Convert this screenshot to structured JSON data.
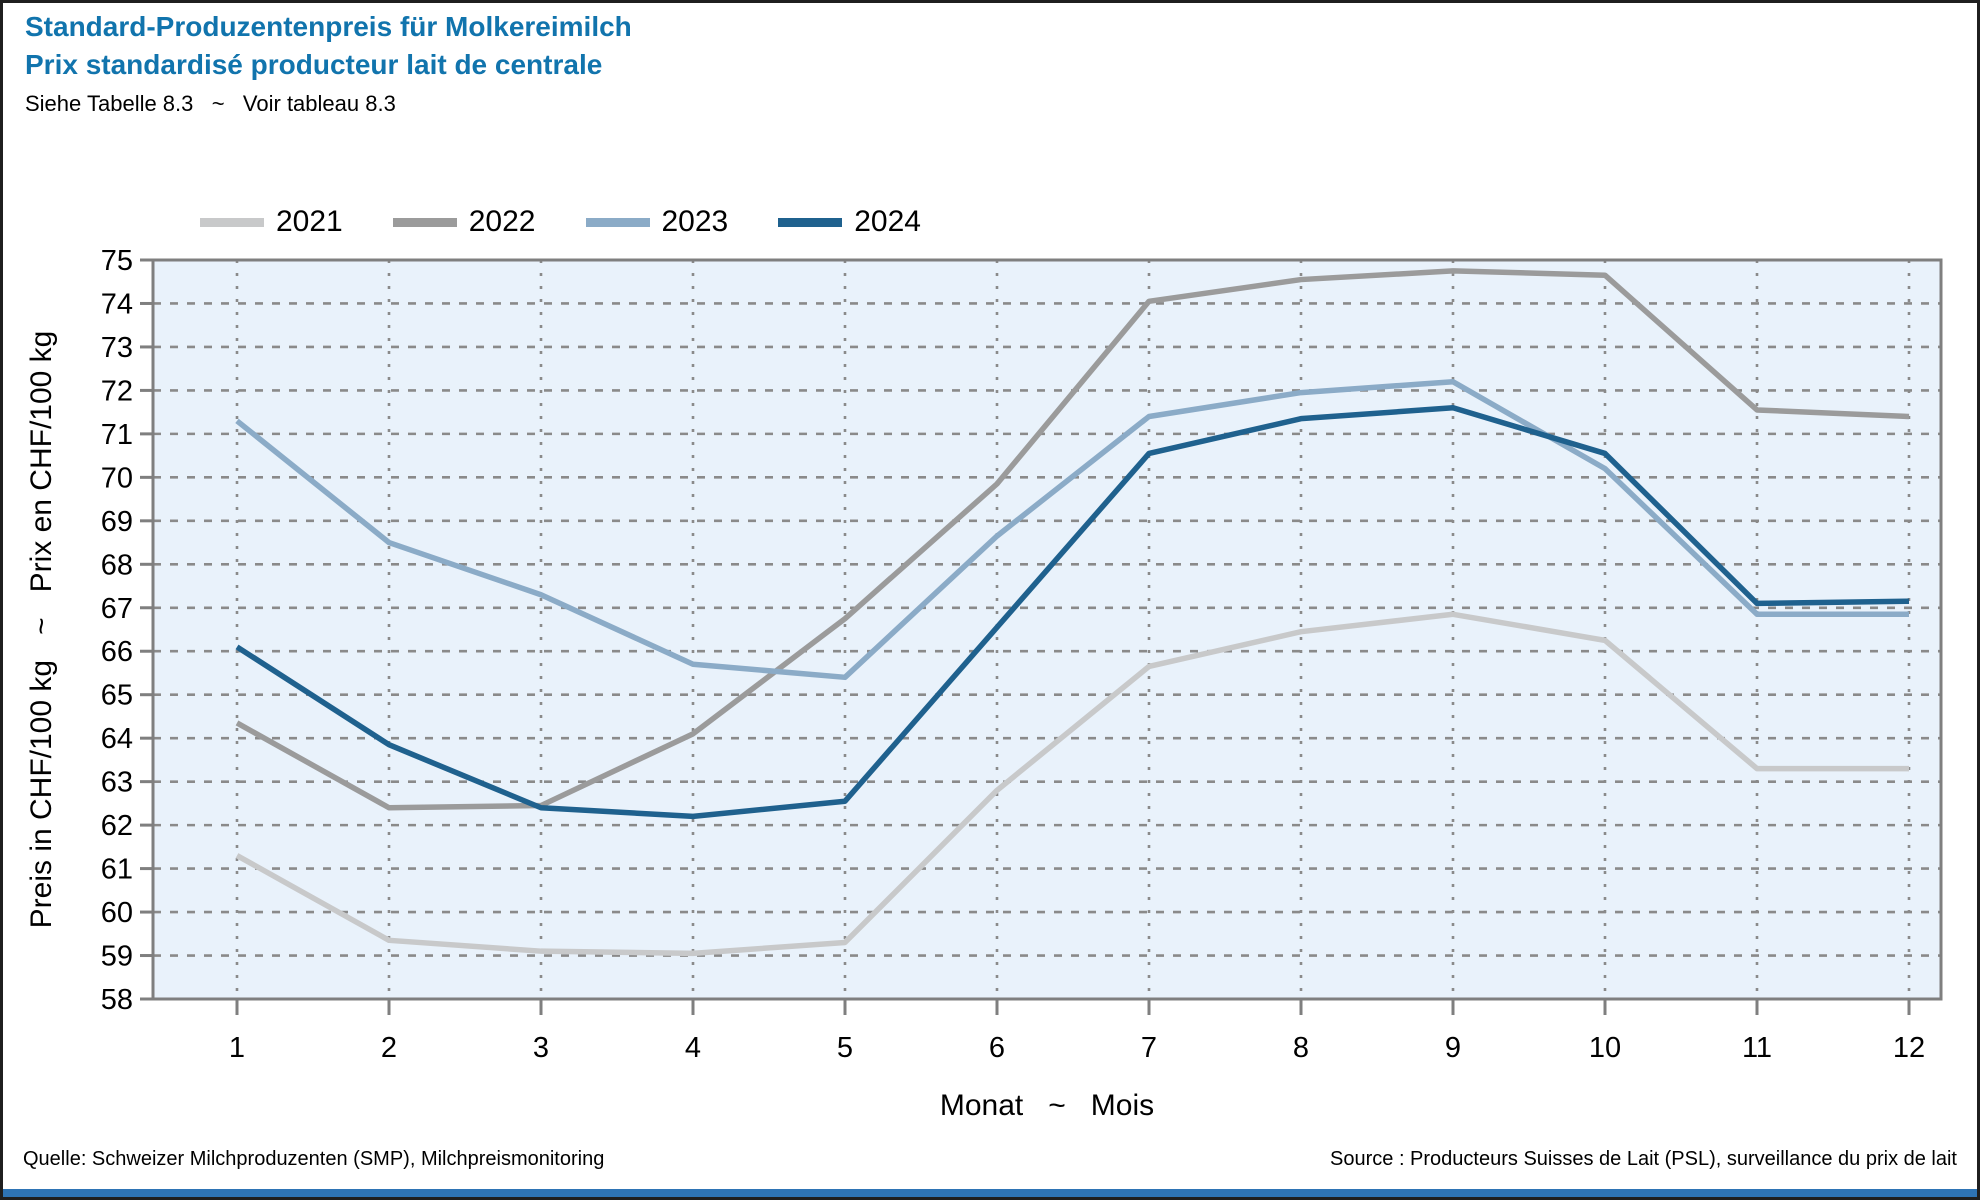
{
  "header": {
    "title_de": "Standard-Produzentenpreis für Molkereimilch",
    "title_fr": "Prix standardisé producteur lait de centrale",
    "note": "Siehe Tabelle 8.3   ~   Voir tableau 8.3"
  },
  "footer": {
    "source_left": "Quelle: Schweizer Milchproduzenten (SMP), Milchpreismonitoring",
    "source_right": "Source : Producteurs Suisses de Lait (PSL), surveillance du prix de lait"
  },
  "colors": {
    "title_blue": "#1174ad",
    "plot_background": "#e9f2fb",
    "grid": "#8a8a8a",
    "frame": "#7f7f7f",
    "bottom_bar": "#2e74b5"
  },
  "chart_data": {
    "type": "line",
    "x": [
      1,
      2,
      3,
      4,
      5,
      6,
      7,
      8,
      9,
      10,
      11,
      12
    ],
    "xlabel": "Monat   ~   Mois",
    "ylabel": "Preis in CHF/100 kg   ~   Prix en CHF/100 kg",
    "ylim": [
      58,
      75
    ],
    "ytick_step": 1,
    "grid": true,
    "legend_position": "top-left",
    "series": [
      {
        "name": "2021",
        "color": "#c8c9ca",
        "values": [
          61.3,
          59.35,
          59.1,
          59.05,
          59.3,
          62.8,
          65.65,
          66.45,
          66.85,
          66.25,
          63.3,
          63.3
        ]
      },
      {
        "name": "2022",
        "color": "#9b9b9b",
        "values": [
          64.35,
          62.4,
          62.45,
          64.1,
          66.75,
          69.85,
          74.05,
          74.55,
          74.75,
          74.65,
          71.55,
          71.4
        ]
      },
      {
        "name": "2023",
        "color": "#8babc7",
        "values": [
          71.3,
          68.5,
          67.3,
          65.7,
          65.4,
          68.65,
          71.4,
          71.95,
          72.2,
          70.2,
          66.85,
          66.85
        ]
      },
      {
        "name": "2024",
        "color": "#1f618e",
        "values": [
          66.1,
          63.85,
          62.4,
          62.2,
          62.55,
          66.55,
          70.55,
          71.35,
          71.6,
          70.55,
          67.1,
          67.15
        ]
      }
    ]
  }
}
